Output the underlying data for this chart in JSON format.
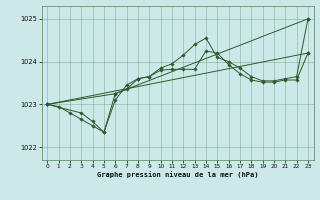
{
  "title": "Graphe pression niveau de la mer (hPa)",
  "xlim": [
    -0.5,
    23.5
  ],
  "ylim": [
    1021.7,
    1025.3
  ],
  "yticks": [
    1022,
    1023,
    1024,
    1025
  ],
  "xticks": [
    0,
    1,
    2,
    3,
    4,
    5,
    6,
    7,
    8,
    9,
    10,
    11,
    12,
    13,
    14,
    15,
    16,
    17,
    18,
    19,
    20,
    21,
    22,
    23
  ],
  "bg_color": "#cce8e8",
  "grid_color": "#4a8a4a",
  "line_color": "#2d5a2d",
  "lines": [
    {
      "x": [
        0,
        1,
        2,
        3,
        4,
        5,
        6,
        7,
        8,
        9,
        10,
        11,
        12,
        13,
        14,
        15,
        16,
        17,
        18,
        19,
        20,
        21,
        22,
        23
      ],
      "y": [
        1023.0,
        1022.95,
        1022.8,
        1022.65,
        1022.5,
        1022.35,
        1023.25,
        1023.35,
        1023.6,
        1023.65,
        1023.85,
        1023.95,
        1024.15,
        1024.4,
        1024.55,
        1024.1,
        1024.0,
        1023.85,
        1023.65,
        1023.55,
        1023.55,
        1023.6,
        1023.65,
        1025.0
      ]
    },
    {
      "x": [
        0,
        3,
        4,
        5,
        6,
        7,
        8,
        9,
        10,
        11,
        12,
        13,
        14,
        15,
        16,
        17,
        18,
        19,
        20,
        21,
        22,
        23
      ],
      "y": [
        1023.0,
        1022.8,
        1022.6,
        1022.35,
        1023.1,
        1023.45,
        1023.6,
        1023.65,
        1023.8,
        1023.82,
        1023.82,
        1023.82,
        1024.25,
        1024.2,
        1023.93,
        1023.72,
        1023.57,
        1023.52,
        1023.52,
        1023.57,
        1023.57,
        1024.2
      ]
    },
    {
      "x": [
        0,
        6,
        23
      ],
      "y": [
        1023.0,
        1023.25,
        1025.0
      ]
    },
    {
      "x": [
        0,
        23
      ],
      "y": [
        1023.0,
        1024.2
      ]
    }
  ],
  "figsize": [
    3.2,
    2.0
  ],
  "dpi": 100
}
